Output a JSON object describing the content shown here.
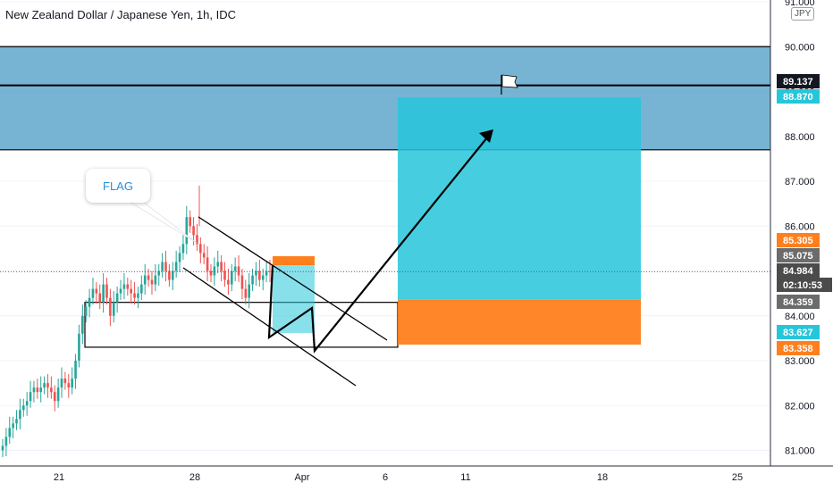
{
  "title": "New Zealand Dollar / Japanese Yen, 1h, IDC",
  "currency": "JPY",
  "annotation": "FLAG",
  "colors": {
    "candle": "#26a69a",
    "up": "#26a69a",
    "down": "#ef5350",
    "resistance_zone": "#4a9bc4",
    "target_zone": "#26c6da",
    "stop_zone": "#ff7f1e",
    "line": "#000000"
  },
  "chart_data": {
    "type": "candlestick",
    "x_ticks": [
      "21",
      "28",
      "Apr",
      "6",
      "11",
      "18",
      "25"
    ],
    "y_ticks": [
      "81.000",
      "82.000",
      "83.000",
      "84.000",
      "85.000",
      "86.000",
      "87.000",
      "88.000",
      "89.000",
      "90.000",
      "91.000"
    ],
    "ylim": [
      80.7,
      91.0
    ],
    "price_labels": [
      {
        "value": "89.137",
        "kind": "level"
      },
      {
        "value": "88.870",
        "kind": "target"
      },
      {
        "value": "85.305",
        "kind": "stop"
      },
      {
        "value": "85.075",
        "kind": "neutral"
      },
      {
        "value": "84.984",
        "kind": "last"
      },
      {
        "value": "02:10:53",
        "kind": "countdown"
      },
      {
        "value": "84.359",
        "kind": "neutral"
      },
      {
        "value": "83.627",
        "kind": "target"
      },
      {
        "value": "83.358",
        "kind": "stop"
      }
    ],
    "levels": [
      90.0,
      89.137,
      87.7
    ],
    "resistance_zone": [
      87.7,
      90.0
    ],
    "support_box": [
      83.3,
      84.3
    ],
    "target_zone": [
      84.359,
      88.87
    ],
    "stop_zone": [
      83.358,
      84.359
    ],
    "current_price": 84.984,
    "closes": [
      81.1,
      81.3,
      81.5,
      81.6,
      81.7,
      81.9,
      82.0,
      82.1,
      82.3,
      82.4,
      82.3,
      82.4,
      82.5,
      82.4,
      82.3,
      82.1,
      82.4,
      82.6,
      82.5,
      82.4,
      82.6,
      83.0,
      83.6,
      84.0,
      84.2,
      84.4,
      84.6,
      84.5,
      84.3,
      84.7,
      84.4,
      84.0,
      84.3,
      84.5,
      84.6,
      84.7,
      84.6,
      84.5,
      84.4,
      84.5,
      84.7,
      84.9,
      84.8,
      84.7,
      84.9,
      85.0,
      85.2,
      85.0,
      84.8,
      85.0,
      85.2,
      85.4,
      85.6,
      86.2,
      86.0,
      85.8,
      85.6,
      85.4,
      85.3,
      85.0,
      84.9,
      85.1,
      85.2,
      85.0,
      84.8,
      84.7,
      85.0,
      85.1,
      84.9,
      84.6,
      84.4,
      84.7,
      84.9,
      85.0,
      84.8,
      84.9,
      85.0,
      84.98
    ]
  }
}
